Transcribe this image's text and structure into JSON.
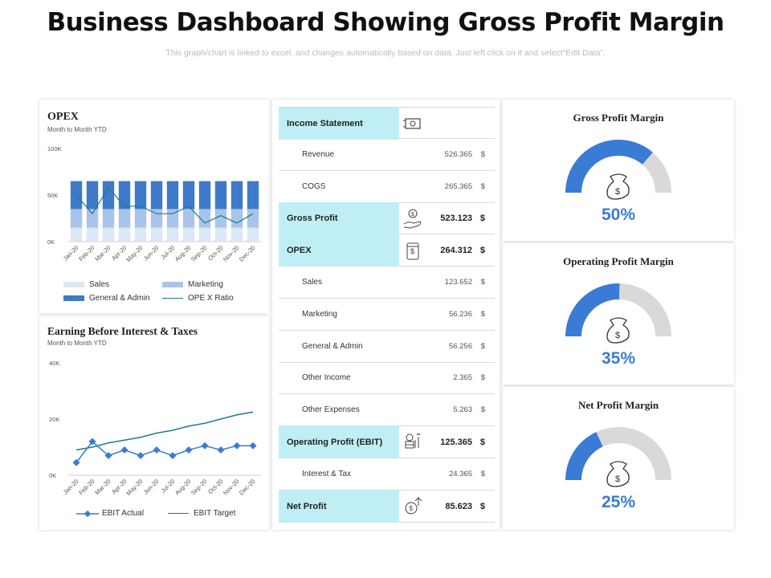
{
  "title": "Business Dashboard Showing Gross Profit Margin",
  "subtitle": "This graph/chart is linked to excel, and changes automatically based on data. Just left click on it and select“Edit Data”.",
  "colors": {
    "accent": "#3a7bd5",
    "dark_blue": "#3d7ac9",
    "mid_blue": "#a8c4ea",
    "light_blue": "#dde7f5",
    "teal": "#1f7a8c",
    "cyan": "#bfeff4",
    "gauge_gray": "#d9d9d9"
  },
  "chart_data": [
    {
      "type": "bar",
      "title": "OPEX",
      "subtitle": "Month  to Month  YTD",
      "stacked": true,
      "categories": [
        "Jan-20",
        "Feb-20",
        "Mar-20",
        "Apr-20",
        "May-20",
        "Jun-20",
        "Jul-20",
        "Aug-20",
        "Sep-20",
        "Oct-20",
        "Nov-20",
        "Dec-20"
      ],
      "ytick_labels": [
        "100K",
        "50K",
        "0K"
      ],
      "ylim": [
        0,
        100000
      ],
      "series": [
        {
          "name": "Sales",
          "values": [
            15000,
            15000,
            15000,
            15000,
            15000,
            15000,
            15000,
            15000,
            15000,
            15000,
            15000,
            15000
          ]
        },
        {
          "name": "Marketing",
          "values": [
            20000,
            20000,
            20000,
            20000,
            20000,
            20000,
            20000,
            20000,
            20000,
            20000,
            20000,
            20000
          ]
        },
        {
          "name": "General & Admin",
          "values": [
            30000,
            30000,
            30000,
            30000,
            30000,
            30000,
            30000,
            30000,
            30000,
            30000,
            30000,
            30000
          ]
        },
        {
          "name": "OPEX Ratio",
          "line": true,
          "values": [
            50000,
            30000,
            58000,
            38000,
            38000,
            30000,
            30000,
            38000,
            20000,
            28000,
            20000,
            30000
          ]
        }
      ],
      "legend": [
        "Sales",
        "Marketing",
        "General & Admin",
        "OPE X Ratio"
      ]
    },
    {
      "type": "line",
      "title": "Earning Before Interest & Taxes",
      "subtitle": "Month  to Month  YTD",
      "categories": [
        "Jan-20",
        "Feb-20",
        "Mar-20",
        "Apr-20",
        "May-20",
        "Jun-20",
        "Jul-20",
        "Aug-20",
        "Sep-20",
        "Oct-20",
        "Nov-20",
        "Dec-20"
      ],
      "ytick_labels": [
        "40K",
        "20K",
        "0K"
      ],
      "ylim": [
        0,
        40000
      ],
      "series": [
        {
          "name": "EBIT Actual",
          "values": [
            4500,
            12000,
            7000,
            9000,
            7000,
            9000,
            7000,
            9000,
            10500,
            9000,
            10500,
            10500
          ]
        },
        {
          "name": "EBIT Target",
          "values": [
            9000,
            10000,
            11500,
            12500,
            13500,
            15000,
            16000,
            17500,
            18500,
            20000,
            21500,
            22500
          ]
        }
      ],
      "legend": [
        "EBIT Actual",
        "EBIT Target"
      ]
    },
    {
      "type": "pie",
      "title": "Gross Profit Margin",
      "value": 50,
      "label": "50%"
    },
    {
      "type": "pie",
      "title": "Operating Profit Margin",
      "value": 35,
      "label": "35%"
    },
    {
      "type": "pie",
      "title": "Net Profit Margin",
      "value": 25,
      "label": "25%"
    }
  ],
  "income": {
    "rows": [
      {
        "label": "Income Statement",
        "value": "",
        "cur": "",
        "hl": true,
        "icon": "cash-icon"
      },
      {
        "label": "Revenue",
        "value": "526.365",
        "cur": "$",
        "hl": false
      },
      {
        "label": "COGS",
        "value": "265.365",
        "cur": "$",
        "hl": false
      },
      {
        "label": "Gross Profit",
        "value": "523.123",
        "cur": "$",
        "hl": true,
        "icon": "money-hand-icon"
      },
      {
        "label": "OPEX",
        "value": "264.312",
        "cur": "$",
        "hl": true,
        "icon": "money-scroll-icon"
      },
      {
        "label": "Sales",
        "value": "123.652",
        "cur": "$",
        "hl": false
      },
      {
        "label": "Marketing",
        "value": "56.236",
        "cur": "$",
        "hl": false
      },
      {
        "label": "General & Admin",
        "value": "56.256",
        "cur": "$",
        "hl": false
      },
      {
        "label": "Other Income",
        "value": "2.365",
        "cur": "$",
        "hl": false
      },
      {
        "label": "Other Expenses",
        "value": "5.263",
        "cur": "$",
        "hl": false
      },
      {
        "label": "Operating Profit (EBIT)",
        "value": "125.365",
        "cur": "$",
        "hl": true,
        "icon": "coins-growth-icon"
      },
      {
        "label": "Interest & Tax",
        "value": "24.365",
        "cur": "$",
        "hl": false
      },
      {
        "label": "Net Profit",
        "value": "85.623",
        "cur": "$",
        "hl": true,
        "icon": "net-profit-icon"
      }
    ]
  }
}
